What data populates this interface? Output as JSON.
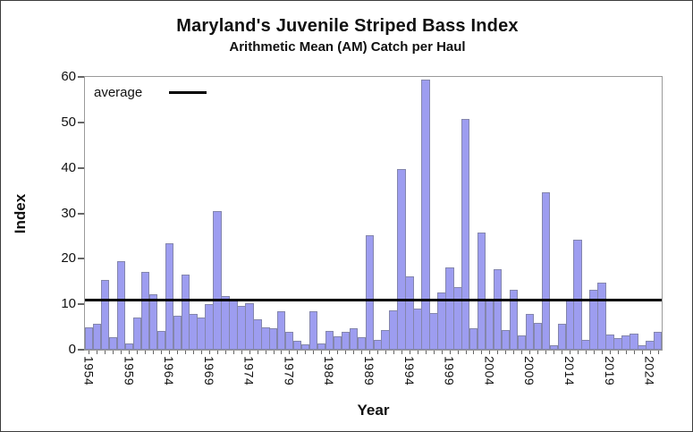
{
  "title": "Maryland's Juvenile Striped Bass Index",
  "subtitle": "Arithmetic Mean (AM) Catch per Haul",
  "legend": {
    "average_label": "average"
  },
  "chart_data": {
    "type": "bar",
    "title": "Maryland's Juvenile Striped Bass Index",
    "subtitle": "Arithmetic Mean (AM) Catch per Haul",
    "xlabel": "Year",
    "ylabel": "Index",
    "ylim": [
      0,
      60
    ],
    "yticks": [
      0,
      10,
      20,
      30,
      40,
      50,
      60
    ],
    "grid": false,
    "legend_position": "top-left",
    "legend_label": "average",
    "average_line": 11.0,
    "labeled_years": [
      1954,
      1959,
      1964,
      1969,
      1974,
      1979,
      1984,
      1989,
      1994,
      1999,
      2004,
      2009,
      2014,
      2019,
      2024
    ],
    "years": [
      1954,
      1955,
      1956,
      1957,
      1958,
      1959,
      1960,
      1961,
      1962,
      1963,
      1964,
      1965,
      1966,
      1967,
      1968,
      1969,
      1970,
      1971,
      1972,
      1973,
      1974,
      1975,
      1976,
      1977,
      1978,
      1979,
      1980,
      1981,
      1982,
      1983,
      1984,
      1985,
      1986,
      1987,
      1988,
      1989,
      1990,
      1991,
      1992,
      1993,
      1994,
      1995,
      1996,
      1997,
      1998,
      1999,
      2000,
      2001,
      2002,
      2003,
      2004,
      2005,
      2006,
      2007,
      2008,
      2009,
      2010,
      2011,
      2012,
      2013,
      2014,
      2015,
      2016,
      2017,
      2018,
      2019,
      2020,
      2021,
      2022,
      2023,
      2024,
      2025
    ],
    "values": [
      5.0,
      5.7,
      15.3,
      2.8,
      19.4,
      1.4,
      7.0,
      17.2,
      12.2,
      4.1,
      23.5,
      7.4,
      16.6,
      7.8,
      7.1,
      10.1,
      30.4,
      11.8,
      11.1,
      9.7,
      10.3,
      6.7,
      4.9,
      4.8,
      8.5,
      4.0,
      2.0,
      1.2,
      8.4,
      1.4,
      4.2,
      2.9,
      4.0,
      4.8,
      2.7,
      25.2,
      2.1,
      4.4,
      8.7,
      39.8,
      16.2,
      9.0,
      59.4,
      8.0,
      12.6,
      18.1,
      13.7,
      50.8,
      4.7,
      25.7,
      11.0,
      17.8,
      4.3,
      13.2,
      3.2,
      7.9,
      5.9,
      34.6,
      0.9,
      5.8,
      11.0,
      24.2,
      2.2,
      13.2,
      14.8,
      3.4,
      2.5,
      3.2,
      3.6,
      1.0,
      2.0,
      4.0
    ],
    "colors": {
      "bar_fill": "#9d9df0",
      "bar_border": "#8486ac",
      "average_line": "#000000",
      "frame": "#9a9a9a",
      "tick": "#666666",
      "text": "#111111",
      "background": "#ffffff"
    }
  }
}
